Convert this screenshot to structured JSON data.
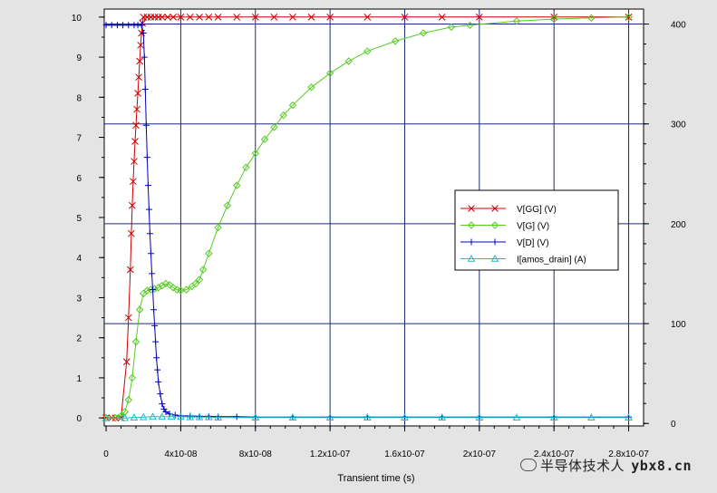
{
  "chart_data": {
    "type": "line",
    "title": "",
    "xlabel": "Transient time (s)",
    "ylabel": "",
    "y2label": "",
    "xlim": [
      -1e-09,
      2.88e-07
    ],
    "ylim": [
      -0.2,
      10.2
    ],
    "y2lim": [
      -2.5,
      415
    ],
    "x_ticks": [
      0,
      4e-08,
      8e-08,
      1.2e-07,
      1.6e-07,
      2e-07,
      2.4e-07,
      2.8e-07
    ],
    "x_tick_labels": [
      "0",
      "4x10-08",
      "8x10-08",
      "1.2x10-07",
      "1.6x10-07",
      "2x10-07",
      "2.4x10-07",
      "2.8x10-07"
    ],
    "y_ticks": [
      0,
      1,
      2,
      3,
      4,
      5,
      6,
      7,
      8,
      9,
      10
    ],
    "y_tick_labels": [
      "0",
      "1",
      "2",
      "3",
      "4",
      "5",
      "6",
      "7",
      "8",
      "9",
      "10"
    ],
    "y2_ticks": [
      0,
      100,
      200,
      300,
      400
    ],
    "y2_tick_labels": [
      "0",
      "100",
      "200",
      "300",
      "400"
    ],
    "grid": true,
    "legend_position": "right-middle",
    "series": [
      {
        "name": "V[GG] (V)",
        "color": "#cc0000",
        "marker": "x",
        "axis": "left",
        "x": [
          0,
          3e-09,
          5e-09,
          8e-09,
          1.1e-08,
          1.2e-08,
          1.3e-08,
          1.35e-08,
          1.4e-08,
          1.45e-08,
          1.5e-08,
          1.55e-08,
          1.6e-08,
          1.65e-08,
          1.7e-08,
          1.75e-08,
          1.8e-08,
          1.85e-08,
          1.9e-08,
          1.95e-08,
          2e-08,
          2.2e-08,
          2.4e-08,
          2.6e-08,
          2.8e-08,
          3e-08,
          3.3e-08,
          3.6e-08,
          4e-08,
          4.5e-08,
          5e-08,
          5.5e-08,
          6e-08,
          7e-08,
          8e-08,
          9e-08,
          1e-07,
          1.1e-07,
          1.2e-07,
          1.4e-07,
          1.6e-07,
          1.8e-07,
          2e-07,
          2.4e-07,
          2.8e-07
        ],
        "y": [
          0,
          0,
          0,
          0,
          1.4,
          2.5,
          3.7,
          4.6,
          5.3,
          5.9,
          6.4,
          6.9,
          7.3,
          7.7,
          8.1,
          8.5,
          8.9,
          9.3,
          9.6,
          9.85,
          10,
          10,
          10,
          10,
          10,
          10,
          10,
          10,
          10,
          10,
          10,
          10,
          10,
          10,
          10,
          10,
          10,
          10,
          10,
          10,
          10,
          10,
          10,
          10,
          10
        ]
      },
      {
        "name": "V[G] (V)",
        "color": "#55cc22",
        "marker": "diamond",
        "axis": "left",
        "x": [
          0,
          5e-09,
          8e-09,
          1e-08,
          1.2e-08,
          1.4e-08,
          1.6e-08,
          1.8e-08,
          2e-08,
          2.2e-08,
          2.4e-08,
          2.6e-08,
          2.8e-08,
          3e-08,
          3.2e-08,
          3.4e-08,
          3.6e-08,
          3.8e-08,
          4e-08,
          4.3e-08,
          4.6e-08,
          4.8e-08,
          5e-08,
          5.2e-08,
          5.5e-08,
          6e-08,
          6.5e-08,
          7e-08,
          7.5e-08,
          8e-08,
          8.5e-08,
          9e-08,
          9.5e-08,
          1e-07,
          1.1e-07,
          1.2e-07,
          1.3e-07,
          1.4e-07,
          1.55e-07,
          1.7e-07,
          1.85e-07,
          1.95e-07,
          2.2e-07,
          2.4e-07,
          2.6e-07,
          2.8e-07
        ],
        "y": [
          0,
          0,
          0.05,
          0.15,
          0.45,
          1.0,
          1.9,
          2.7,
          3.1,
          3.18,
          3.2,
          3.22,
          3.25,
          3.3,
          3.35,
          3.32,
          3.25,
          3.2,
          3.18,
          3.2,
          3.28,
          3.35,
          3.45,
          3.7,
          4.1,
          4.75,
          5.3,
          5.8,
          6.25,
          6.6,
          6.95,
          7.25,
          7.55,
          7.8,
          8.25,
          8.6,
          8.9,
          9.15,
          9.4,
          9.6,
          9.75,
          9.8,
          9.9,
          9.95,
          9.98,
          10.0
        ]
      },
      {
        "name": "V[D] (V)",
        "color": "#0000bb",
        "marker": "plus",
        "axis": "left",
        "x": [
          0,
          3e-09,
          6e-09,
          9e-09,
          1.2e-08,
          1.5e-08,
          1.7e-08,
          1.9e-08,
          2e-08,
          2.05e-08,
          2.1e-08,
          2.15e-08,
          2.2e-08,
          2.25e-08,
          2.3e-08,
          2.35e-08,
          2.4e-08,
          2.45e-08,
          2.5e-08,
          2.55e-08,
          2.6e-08,
          2.65e-08,
          2.7e-08,
          2.75e-08,
          2.8e-08,
          2.9e-08,
          3e-08,
          3.1e-08,
          3.2e-08,
          3.4e-08,
          3.7e-08,
          4e-08,
          4.5e-08,
          5e-08,
          5.5e-08,
          6e-08,
          7e-08,
          8e-08,
          1e-07,
          1.2e-07,
          1.4e-07,
          1.6e-07,
          1.8e-07,
          2e-07,
          2.4e-07,
          2.8e-07
        ],
        "y": [
          9.8,
          9.8,
          9.8,
          9.8,
          9.8,
          9.8,
          9.8,
          9.8,
          9.6,
          9.0,
          8.2,
          7.3,
          6.5,
          5.8,
          5.2,
          4.6,
          4.1,
          3.6,
          3.2,
          2.7,
          2.3,
          1.9,
          1.5,
          1.2,
          0.9,
          0.6,
          0.35,
          0.22,
          0.15,
          0.1,
          0.07,
          0.05,
          0.05,
          0.04,
          0.04,
          0.03,
          0.03,
          0.02,
          0.02,
          0.02,
          0.02,
          0.02,
          0.02,
          0.02,
          0.02,
          0.02
        ]
      },
      {
        "name": "I[amos_drain] (A)",
        "color": "#22bbcc",
        "marker": "triangle",
        "axis": "left",
        "x": [
          0,
          1e-08,
          1.5e-08,
          2e-08,
          2.5e-08,
          3e-08,
          3.5e-08,
          4e-08,
          4.5e-08,
          5e-08,
          5.5e-08,
          6e-08,
          8e-08,
          1e-07,
          1.2e-07,
          1.4e-07,
          1.6e-07,
          1.8e-07,
          2e-07,
          2.2e-07,
          2.4e-07,
          2.6e-07,
          2.8e-07
        ],
        "y": [
          0,
          0,
          0.01,
          0.02,
          0.03,
          0.03,
          0.03,
          0.03,
          0.02,
          0.02,
          0.02,
          0.01,
          0.01,
          0.01,
          0.01,
          0.01,
          0.01,
          0.01,
          0.01,
          0.01,
          0.01,
          0.01,
          0.01
        ]
      }
    ]
  },
  "watermark": {
    "text": "半导体技术人",
    "site": "ybx8.cn"
  }
}
